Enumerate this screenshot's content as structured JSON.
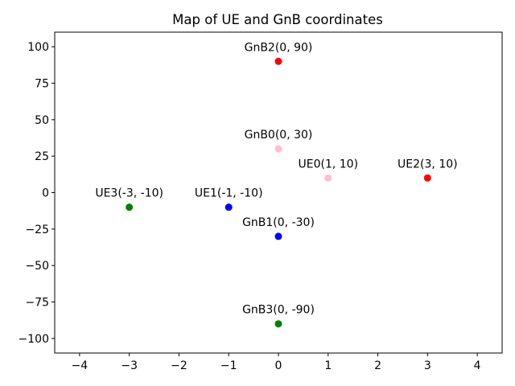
{
  "chart_data": {
    "type": "scatter",
    "title": "Map of UE and GnB coordinates",
    "xlabel": "",
    "ylabel": "",
    "xlim": [
      -4.5,
      4.5
    ],
    "ylim": [
      -110,
      110
    ],
    "xticks": [
      -4,
      -3,
      -2,
      -1,
      0,
      1,
      2,
      3,
      4
    ],
    "yticks": [
      -100,
      -75,
      -50,
      -25,
      0,
      25,
      50,
      75,
      100
    ],
    "grid": false,
    "points": [
      {
        "label": "GnB2(0, 90)",
        "x": 0,
        "y": 90,
        "color": "#ff0000"
      },
      {
        "label": "GnB0(0, 30)",
        "x": 0,
        "y": 30,
        "color": "#ffc0cb"
      },
      {
        "label": "UE0(1, 10)",
        "x": 1,
        "y": 10,
        "color": "#ffc0cb"
      },
      {
        "label": "UE2(3, 10)",
        "x": 3,
        "y": 10,
        "color": "#ff0000"
      },
      {
        "label": "UE3(-3, -10)",
        "x": -3,
        "y": -10,
        "color": "#008000"
      },
      {
        "label": "UE1(-1, -10)",
        "x": -1,
        "y": -10,
        "color": "#0000ff"
      },
      {
        "label": "GnB1(0, -30)",
        "x": 0,
        "y": -30,
        "color": "#0000ff"
      },
      {
        "label": "GnB3(0, -90)",
        "x": 0,
        "y": -90,
        "color": "#008000"
      }
    ]
  }
}
